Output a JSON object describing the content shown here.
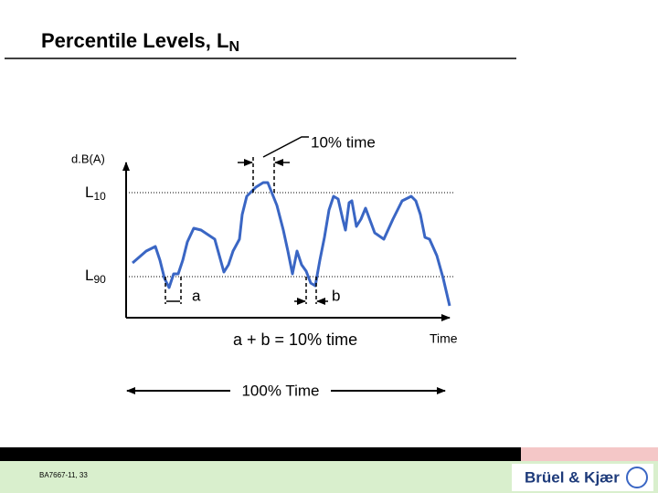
{
  "title": {
    "text": "Percentile Levels, L",
    "subscript": "N"
  },
  "y_axis_label": "d.B(A)",
  "levels": [
    {
      "label": "L",
      "subscript": "10"
    },
    {
      "label": "L",
      "subscript": "90"
    }
  ],
  "annotations": {
    "top_interval": "10% time",
    "interval_a": "a",
    "interval_b": "b",
    "equation": "a + b = 10% time",
    "x_axis_label": "Time",
    "span": "100% Time"
  },
  "footer": {
    "code": "BA7667-11, 33",
    "logo": "Brüel & Kjær"
  }
}
